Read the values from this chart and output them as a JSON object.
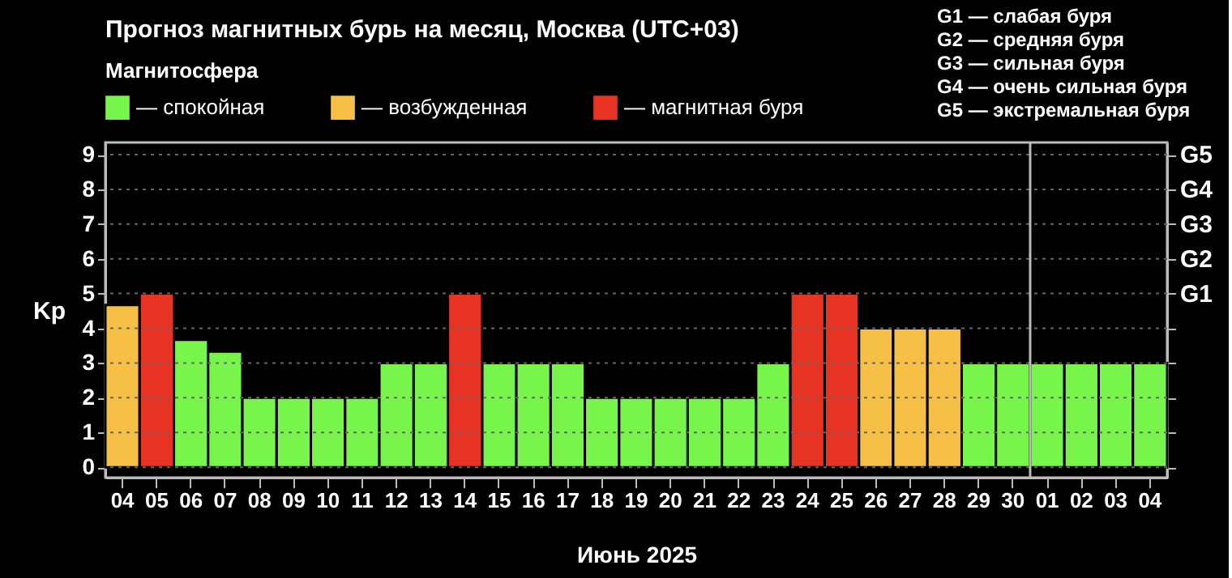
{
  "chart_data": {
    "type": "bar",
    "title": "Прогноз магнитных бурь на месяц, Москва (UTC+03)",
    "legend_title": "Магнитосфера",
    "xlabel": "Июнь 2025",
    "ylabel": "Kp",
    "categories": [
      "04",
      "05",
      "06",
      "07",
      "08",
      "09",
      "10",
      "11",
      "12",
      "13",
      "14",
      "15",
      "16",
      "17",
      "18",
      "19",
      "20",
      "21",
      "22",
      "23",
      "24",
      "25",
      "26",
      "27",
      "28",
      "29",
      "30",
      "01",
      "02",
      "03",
      "04"
    ],
    "series": [
      {
        "name": "— спокойная",
        "color": "#77f54b",
        "values": [
          null,
          null,
          3.67,
          3.33,
          2,
          2,
          2,
          2,
          3,
          3,
          null,
          3,
          3,
          3,
          2,
          2,
          2,
          2,
          2,
          3,
          null,
          null,
          null,
          null,
          null,
          3,
          3,
          3,
          3,
          3,
          3
        ]
      },
      {
        "name": "— возбужденная",
        "color": "#f5c045",
        "values": [
          4.67,
          null,
          null,
          null,
          null,
          null,
          null,
          null,
          null,
          null,
          null,
          null,
          null,
          null,
          null,
          null,
          null,
          null,
          null,
          null,
          null,
          null,
          4,
          4,
          4,
          null,
          null,
          null,
          null,
          null,
          null
        ]
      },
      {
        "name": "— магнитная буря",
        "color": "#e63323",
        "values": [
          null,
          5,
          null,
          null,
          null,
          null,
          null,
          null,
          null,
          null,
          5,
          null,
          null,
          null,
          null,
          null,
          null,
          null,
          null,
          null,
          5,
          5,
          null,
          null,
          null,
          null,
          null,
          null,
          null,
          null,
          null
        ]
      }
    ],
    "ylim": [
      -0.3,
      9.35
    ],
    "yticks": [
      0,
      1,
      2,
      3,
      4,
      5,
      6,
      7,
      8,
      9
    ],
    "ref_lines": [
      {
        "axis": "x",
        "value": "01",
        "color": "#bbbbbb"
      }
    ],
    "annotations": [
      "G1 — слабая буря",
      "G2 — средняя буря",
      "G3 — сильная буря",
      "G4 — очень сильная буря",
      "G5 — экстремальная буря",
      "G1",
      "G2",
      "G3",
      "G4",
      "G5"
    ],
    "grid": "y",
    "legend": "top left"
  }
}
